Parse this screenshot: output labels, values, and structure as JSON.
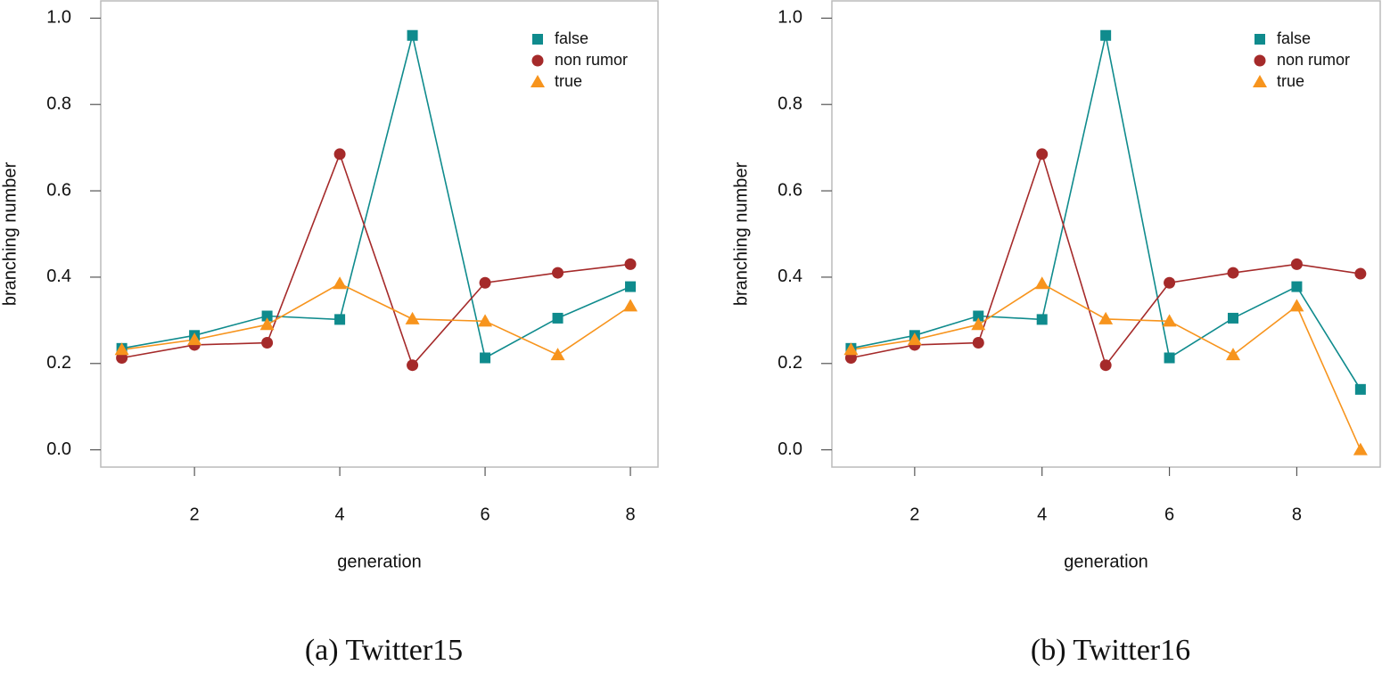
{
  "chart_data": [
    {
      "type": "line",
      "caption": "(a) Twitter15",
      "xlabel": "generation",
      "ylabel": "branching number",
      "x": [
        1,
        2,
        3,
        4,
        5,
        6,
        7,
        8
      ],
      "series": [
        {
          "name": "false",
          "color": "#0f8b8d",
          "marker": "square",
          "values": [
            0.235,
            0.265,
            0.31,
            0.302,
            0.96,
            0.213,
            0.305,
            0.378
          ]
        },
        {
          "name": "non rumor",
          "color": "#a52a2a",
          "marker": "circle",
          "values": [
            0.213,
            0.243,
            0.248,
            0.685,
            0.196,
            0.387,
            0.41,
            0.43
          ]
        },
        {
          "name": "true",
          "color": "#f7941d",
          "marker": "triangle",
          "values": [
            0.232,
            0.255,
            0.29,
            0.385,
            0.303,
            0.298,
            0.22,
            0.333
          ]
        }
      ],
      "xlim": [
        0.71,
        8.38
      ],
      "xticks": [
        2,
        4,
        6,
        8
      ],
      "ylim": [
        -0.04,
        1.04
      ],
      "yticks": [
        {
          "value": 0,
          "label": "0.0"
        },
        0.2,
        0.4,
        0.6,
        0.8,
        {
          "value": 1,
          "label": "1.0"
        }
      ],
      "legend": "upper right"
    },
    {
      "type": "line",
      "caption": "(b) Twitter16",
      "xlabel": "generation",
      "ylabel": "branching number",
      "x": [
        1,
        2,
        3,
        4,
        5,
        6,
        7,
        8,
        9
      ],
      "series": [
        {
          "name": "false",
          "color": "#0f8b8d",
          "marker": "square",
          "values": [
            0.235,
            0.265,
            0.31,
            0.302,
            0.96,
            0.213,
            0.305,
            0.378,
            0.14
          ]
        },
        {
          "name": "non rumor",
          "color": "#a52a2a",
          "marker": "circle",
          "values": [
            0.213,
            0.243,
            0.248,
            0.685,
            0.196,
            0.387,
            0.41,
            0.43,
            0.408
          ]
        },
        {
          "name": "true",
          "color": "#f7941d",
          "marker": "triangle",
          "values": [
            0.232,
            0.255,
            0.29,
            0.385,
            0.303,
            0.298,
            0.22,
            0.333,
            0.0
          ]
        }
      ],
      "xlim": [
        0.7,
        9.31
      ],
      "xticks": [
        2,
        4,
        6,
        8
      ],
      "ylim": [
        -0.04,
        1.04
      ],
      "yticks": [
        {
          "value": 0,
          "label": "0.0"
        },
        0.2,
        0.4,
        0.6,
        0.8,
        {
          "value": 1,
          "label": "1.0"
        }
      ],
      "legend": "upper right"
    }
  ]
}
